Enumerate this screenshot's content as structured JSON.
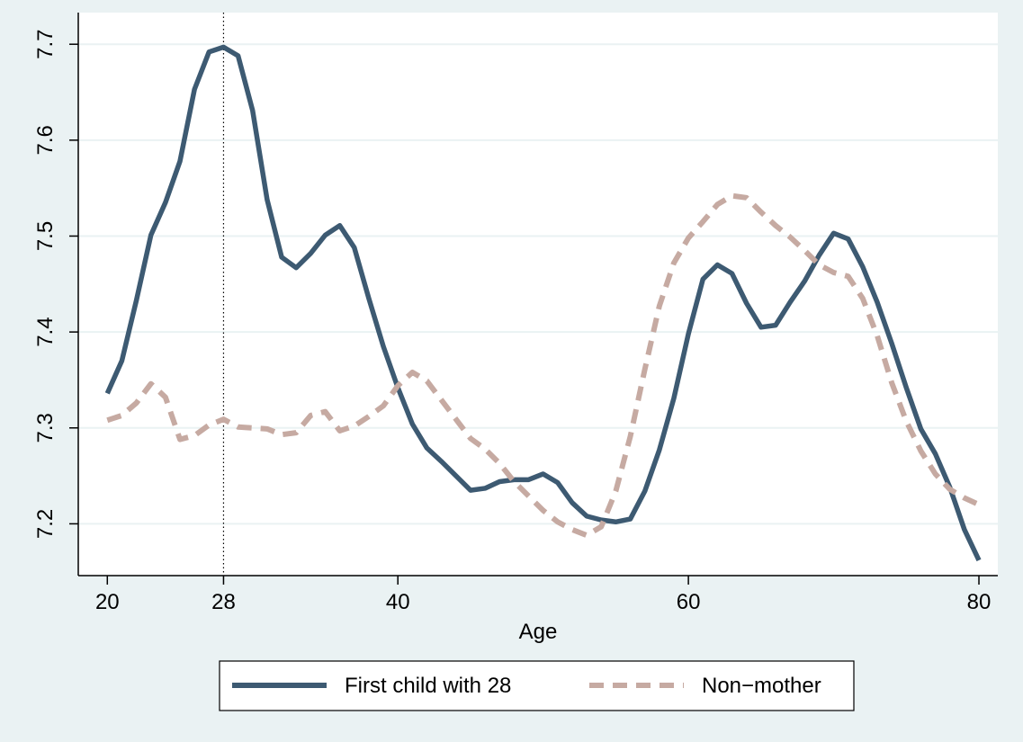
{
  "chart_data": {
    "type": "line",
    "x_label": "Age",
    "x": [
      20,
      21,
      22,
      23,
      24,
      25,
      26,
      27,
      28,
      29,
      30,
      31,
      32,
      33,
      34,
      35,
      36,
      37,
      38,
      39,
      40,
      41,
      42,
      43,
      44,
      45,
      46,
      47,
      48,
      49,
      50,
      51,
      52,
      53,
      54,
      55,
      56,
      57,
      58,
      59,
      60,
      61,
      62,
      63,
      64,
      65,
      66,
      67,
      68,
      69,
      70,
      71,
      72,
      73,
      74,
      75,
      76,
      77,
      78,
      79,
      80
    ],
    "series": [
      {
        "name": "First child with 28",
        "color": "#3d5a72",
        "dash": false,
        "values": [
          7.336,
          7.37,
          7.433,
          7.501,
          7.535,
          7.578,
          7.653,
          7.692,
          7.697,
          7.688,
          7.631,
          7.538,
          7.478,
          7.467,
          7.482,
          7.501,
          7.511,
          7.488,
          7.435,
          7.385,
          7.342,
          7.304,
          7.279,
          7.265,
          7.25,
          7.235,
          7.237,
          7.244,
          7.246,
          7.246,
          7.252,
          7.243,
          7.222,
          7.208,
          7.204,
          7.202,
          7.205,
          7.234,
          7.277,
          7.331,
          7.398,
          7.455,
          7.47,
          7.461,
          7.43,
          7.405,
          7.407,
          7.431,
          7.453,
          7.48,
          7.503,
          7.497,
          7.468,
          7.431,
          7.388,
          7.342,
          7.299,
          7.273,
          7.238,
          7.194,
          7.162
        ]
      },
      {
        "name": "Non−mother",
        "color": "#c6aaa2",
        "dash": true,
        "values": [
          7.308,
          7.313,
          7.326,
          7.346,
          7.332,
          7.288,
          7.292,
          7.303,
          7.309,
          7.301,
          7.3,
          7.299,
          7.293,
          7.295,
          7.313,
          7.317,
          7.297,
          7.302,
          7.312,
          7.323,
          7.344,
          7.358,
          7.349,
          7.329,
          7.309,
          7.289,
          7.278,
          7.263,
          7.244,
          7.229,
          7.214,
          7.202,
          7.194,
          7.188,
          7.197,
          7.234,
          7.291,
          7.361,
          7.427,
          7.472,
          7.498,
          7.515,
          7.533,
          7.542,
          7.54,
          7.525,
          7.511,
          7.499,
          7.485,
          7.47,
          7.462,
          7.458,
          7.435,
          7.396,
          7.347,
          7.307,
          7.276,
          7.252,
          7.236,
          7.227,
          7.22
        ]
      }
    ],
    "xlim": [
      18,
      81.3
    ],
    "xticks": [
      20,
      28,
      40,
      60,
      80
    ],
    "ylim": [
      7.146,
      7.733
    ],
    "yticks": [
      7.2,
      7.3,
      7.4,
      7.5,
      7.6,
      7.7
    ],
    "grid": true,
    "reference_line_x": 28,
    "legend": "bottom"
  }
}
